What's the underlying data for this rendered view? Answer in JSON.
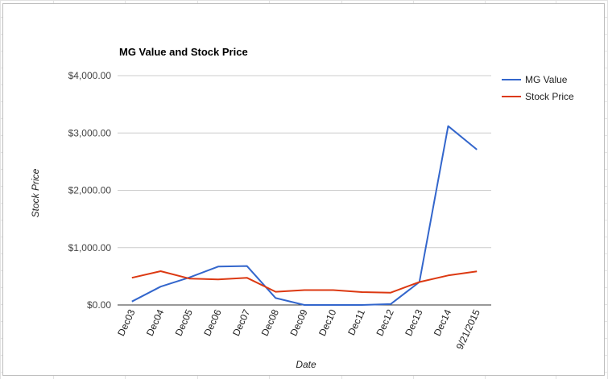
{
  "chart_data": {
    "type": "line",
    "title": "MG Value and Stock Price",
    "xlabel": "Date",
    "ylabel": "Stock Price",
    "categories": [
      "Dec03",
      "Dec04",
      "Dec05",
      "Dec06",
      "Dec07",
      "Dec08",
      "Dec09",
      "Dec10",
      "Dec11",
      "Dec12",
      "Dec13",
      "Dec14",
      "9/21/2015"
    ],
    "y_ticks": [
      "$0.00",
      "$1,000.00",
      "$2,000.00",
      "$3,000.00",
      "$4,000.00"
    ],
    "ylim": [
      0,
      4000
    ],
    "grid": true,
    "legend_position": "right",
    "series": [
      {
        "name": "MG Value",
        "color": "#3366cc",
        "values": [
          60,
          320,
          480,
          670,
          680,
          120,
          0,
          0,
          0,
          15,
          400,
          3120,
          2710
        ]
      },
      {
        "name": "Stock Price",
        "color": "#dc3912",
        "values": [
          475,
          590,
          460,
          445,
          475,
          230,
          260,
          260,
          225,
          215,
          400,
          515,
          585
        ]
      }
    ]
  }
}
